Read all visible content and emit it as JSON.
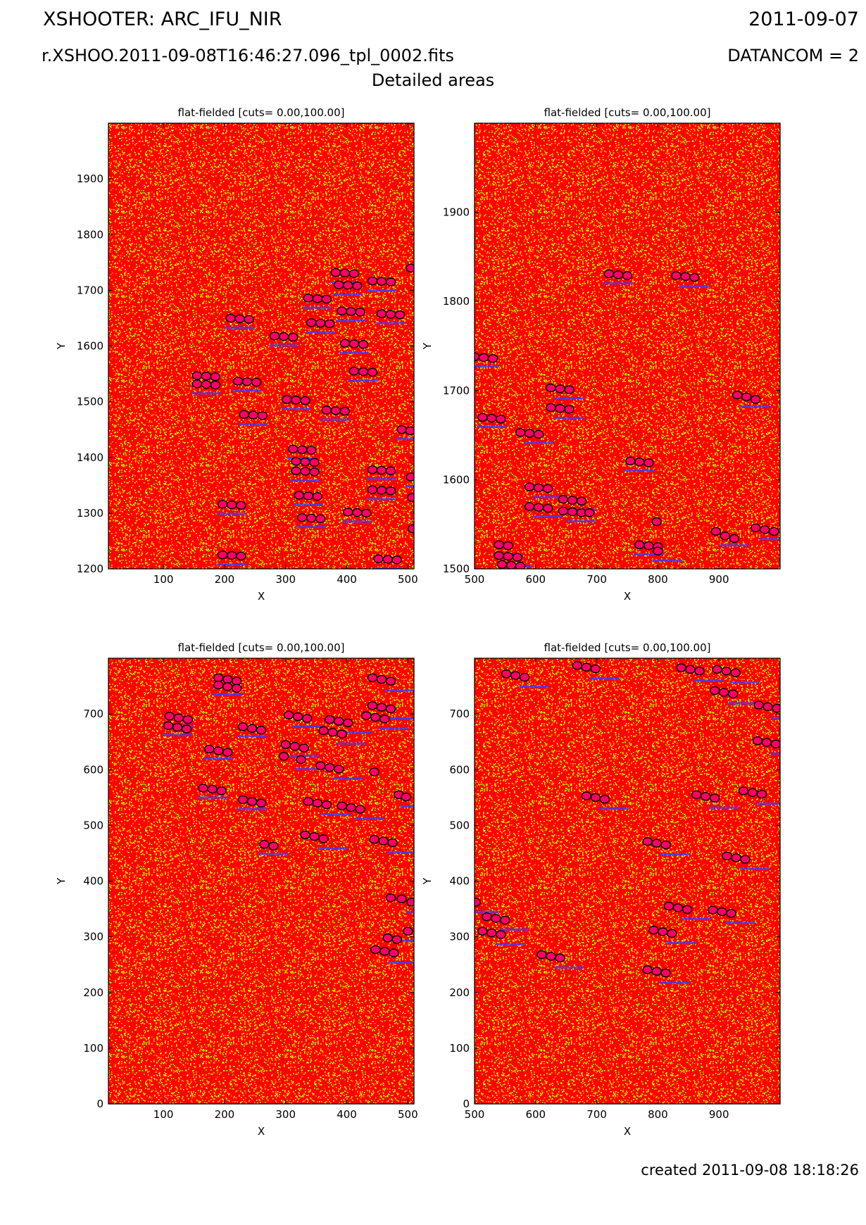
{
  "header": {
    "title": "XSHOOTER: ARC_IFU_NIR",
    "date": "2011-09-07",
    "filename": "r.XSHOO.2011-09-08T16:46:27.096_tpl_0002.fits",
    "datancom": "DATANCOM = 2",
    "subtitle": "Detailed areas"
  },
  "footer": {
    "created": "created 2011-09-08 18:18:26"
  },
  "colors": {
    "background_red": "#ff0000",
    "speckle_yellow": "#ffff00",
    "speckle_green": "#7fff00",
    "spot_magenta": "#ff0066",
    "line_blue": "#3c3cff",
    "cyan_halo": "#00e5ff",
    "circle_marker": "#000000"
  },
  "chart_data": [
    {
      "type": "heatmap",
      "title": "flat-fielded [cuts= 0.00,100.00]",
      "xlabel": "X",
      "ylabel": "Y",
      "xlim": [
        10,
        510
      ],
      "ylim": [
        1200,
        2000
      ],
      "xticks": [
        100,
        200,
        300,
        400,
        500
      ],
      "yticks": [
        1200,
        1300,
        1400,
        1500,
        1600,
        1700,
        1800,
        1900
      ],
      "cuts": [
        0.0,
        100.0
      ],
      "markers": [
        [
          197,
          1225
        ],
        [
          212,
          1224
        ],
        [
          227,
          1223
        ],
        [
          197,
          1316
        ],
        [
          212,
          1315
        ],
        [
          227,
          1314
        ],
        [
          155,
          1547
        ],
        [
          170,
          1546
        ],
        [
          185,
          1545
        ],
        [
          155,
          1532
        ],
        [
          170,
          1531
        ],
        [
          185,
          1530
        ],
        [
          210,
          1650
        ],
        [
          225,
          1649
        ],
        [
          240,
          1648
        ],
        [
          232,
          1477
        ],
        [
          247,
          1476
        ],
        [
          262,
          1475
        ],
        [
          222,
          1537
        ],
        [
          237,
          1536
        ],
        [
          252,
          1535
        ],
        [
          282,
          1618
        ],
        [
          297,
          1617
        ],
        [
          312,
          1616
        ],
        [
          302,
          1504
        ],
        [
          317,
          1503
        ],
        [
          332,
          1502
        ],
        [
          312,
          1415
        ],
        [
          327,
          1414
        ],
        [
          342,
          1413
        ],
        [
          317,
          1393
        ],
        [
          332,
          1392
        ],
        [
          347,
          1391
        ],
        [
          317,
          1376
        ],
        [
          332,
          1375
        ],
        [
          347,
          1374
        ],
        [
          322,
          1332
        ],
        [
          337,
          1331
        ],
        [
          352,
          1330
        ],
        [
          327,
          1292
        ],
        [
          342,
          1291
        ],
        [
          357,
          1290
        ],
        [
          337,
          1686
        ],
        [
          352,
          1685
        ],
        [
          367,
          1684
        ],
        [
          342,
          1642
        ],
        [
          357,
          1641
        ],
        [
          372,
          1640
        ],
        [
          367,
          1485
        ],
        [
          382,
          1484
        ],
        [
          397,
          1483
        ],
        [
          382,
          1732
        ],
        [
          397,
          1731
        ],
        [
          412,
          1730
        ],
        [
          387,
          1710
        ],
        [
          402,
          1709
        ],
        [
          417,
          1708
        ],
        [
          392,
          1663
        ],
        [
          407,
          1662
        ],
        [
          422,
          1661
        ],
        [
          397,
          1605
        ],
        [
          412,
          1604
        ],
        [
          427,
          1603
        ],
        [
          402,
          1302
        ],
        [
          417,
          1301
        ],
        [
          432,
          1300
        ],
        [
          412,
          1555
        ],
        [
          427,
          1554
        ],
        [
          442,
          1553
        ],
        [
          442,
          1378
        ],
        [
          457,
          1377
        ],
        [
          472,
          1376
        ],
        [
          442,
          1342
        ],
        [
          457,
          1341
        ],
        [
          472,
          1340
        ],
        [
          442,
          1717
        ],
        [
          457,
          1716
        ],
        [
          472,
          1715
        ],
        [
          457,
          1658
        ],
        [
          472,
          1657
        ],
        [
          487,
          1656
        ],
        [
          452,
          1218
        ],
        [
          467,
          1217
        ],
        [
          482,
          1216
        ],
        [
          490,
          1450
        ],
        [
          504,
          1448
        ],
        [
          505,
          1740
        ],
        [
          505,
          1365
        ],
        [
          507,
          1328
        ],
        [
          508,
          1272
        ]
      ]
    },
    {
      "type": "heatmap",
      "title": "flat-fielded [cuts= 0.00,100.00]",
      "xlabel": "X",
      "ylabel": "Y",
      "xlim": [
        500,
        1000
      ],
      "ylim": [
        1500,
        2000
      ],
      "xticks": [
        500,
        600,
        700,
        800,
        900
      ],
      "yticks": [
        1500,
        1600,
        1700,
        1800,
        1900
      ],
      "cuts": [
        0.0,
        100.0
      ],
      "markers": [
        [
          500,
          1738
        ],
        [
          515,
          1737
        ],
        [
          530,
          1736
        ],
        [
          513,
          1670
        ],
        [
          528,
          1669
        ],
        [
          543,
          1668
        ],
        [
          540,
          1527
        ],
        [
          555,
          1526
        ],
        [
          540,
          1515
        ],
        [
          555,
          1514
        ],
        [
          570,
          1513
        ],
        [
          545,
          1505
        ],
        [
          560,
          1504
        ],
        [
          575,
          1503
        ],
        [
          575,
          1653
        ],
        [
          590,
          1652
        ],
        [
          605,
          1651
        ],
        [
          590,
          1592
        ],
        [
          605,
          1591
        ],
        [
          620,
          1590
        ],
        [
          590,
          1570
        ],
        [
          605,
          1569
        ],
        [
          620,
          1568
        ],
        [
          625,
          1703
        ],
        [
          640,
          1702
        ],
        [
          655,
          1701
        ],
        [
          625,
          1681
        ],
        [
          640,
          1680
        ],
        [
          655,
          1679
        ],
        [
          645,
          1578
        ],
        [
          660,
          1577
        ],
        [
          675,
          1576
        ],
        [
          645,
          1565
        ],
        [
          660,
          1564
        ],
        [
          675,
          1563
        ],
        [
          688,
          1563
        ],
        [
          720,
          1831
        ],
        [
          735,
          1830
        ],
        [
          750,
          1829
        ],
        [
          755,
          1621
        ],
        [
          770,
          1620
        ],
        [
          785,
          1619
        ],
        [
          770,
          1527
        ],
        [
          785,
          1526
        ],
        [
          800,
          1525
        ],
        [
          800,
          1520
        ],
        [
          798,
          1553
        ],
        [
          830,
          1829
        ],
        [
          845,
          1828
        ],
        [
          860,
          1827
        ],
        [
          895,
          1542
        ],
        [
          910,
          1537
        ],
        [
          925,
          1534
        ],
        [
          930,
          1695
        ],
        [
          945,
          1693
        ],
        [
          960,
          1690
        ],
        [
          960,
          1546
        ],
        [
          975,
          1544
        ],
        [
          990,
          1542
        ]
      ]
    },
    {
      "type": "heatmap",
      "title": "flat-fielded [cuts= 0.00,100.00]",
      "xlabel": "X",
      "ylabel": "Y",
      "xlim": [
        10,
        510
      ],
      "ylim": [
        0,
        800
      ],
      "xticks": [
        100,
        200,
        300,
        400,
        500
      ],
      "yticks": [
        0,
        100,
        200,
        300,
        400,
        500,
        600,
        700
      ],
      "cuts": [
        0.0,
        100.0
      ],
      "markers": [
        [
          110,
          696
        ],
        [
          125,
          693
        ],
        [
          140,
          690
        ],
        [
          108,
          679
        ],
        [
          123,
          676
        ],
        [
          138,
          673
        ],
        [
          165,
          567
        ],
        [
          180,
          565
        ],
        [
          195,
          562
        ],
        [
          175,
          637
        ],
        [
          190,
          634
        ],
        [
          205,
          631
        ],
        [
          190,
          765
        ],
        [
          205,
          762
        ],
        [
          220,
          759
        ],
        [
          190,
          752
        ],
        [
          205,
          749
        ],
        [
          220,
          746
        ],
        [
          230,
          677
        ],
        [
          245,
          674
        ],
        [
          260,
          671
        ],
        [
          230,
          546
        ],
        [
          245,
          543
        ],
        [
          260,
          540
        ],
        [
          265,
          466
        ],
        [
          280,
          463
        ],
        [
          305,
          698
        ],
        [
          320,
          695
        ],
        [
          335,
          692
        ],
        [
          300,
          645
        ],
        [
          315,
          642
        ],
        [
          330,
          639
        ],
        [
          297,
          624
        ],
        [
          325,
          618
        ],
        [
          337,
          543
        ],
        [
          352,
          540
        ],
        [
          367,
          537
        ],
        [
          332,
          483
        ],
        [
          347,
          480
        ],
        [
          362,
          476
        ],
        [
          357,
          607
        ],
        [
          372,
          604
        ],
        [
          387,
          601
        ],
        [
          362,
          670
        ],
        [
          377,
          667
        ],
        [
          392,
          664
        ],
        [
          372,
          690
        ],
        [
          387,
          687
        ],
        [
          402,
          684
        ],
        [
          392,
          535
        ],
        [
          407,
          532
        ],
        [
          422,
          529
        ],
        [
          442,
          765
        ],
        [
          457,
          762
        ],
        [
          472,
          759
        ],
        [
          442,
          715
        ],
        [
          457,
          712
        ],
        [
          472,
          709
        ],
        [
          432,
          697
        ],
        [
          447,
          694
        ],
        [
          462,
          691
        ],
        [
          445,
          475
        ],
        [
          460,
          472
        ],
        [
          475,
          469
        ],
        [
          447,
          277
        ],
        [
          462,
          274
        ],
        [
          477,
          271
        ],
        [
          445,
          596
        ],
        [
          485,
          555
        ],
        [
          497,
          551
        ],
        [
          472,
          370
        ],
        [
          490,
          368
        ],
        [
          506,
          362
        ],
        [
          467,
          298
        ],
        [
          482,
          295
        ],
        [
          500,
          310
        ]
      ]
    },
    {
      "type": "heatmap",
      "title": "flat-fielded [cuts= 0.00,100.00]",
      "xlabel": "X",
      "ylabel": "Y",
      "xlim": [
        500,
        1000
      ],
      "ylim": [
        0,
        800
      ],
      "xticks": [
        500,
        600,
        700,
        800,
        900
      ],
      "yticks": [
        0,
        100,
        200,
        300,
        400,
        500,
        600,
        700
      ],
      "cuts": [
        0.0,
        100.0
      ],
      "markers": [
        [
          502,
          362
        ],
        [
          520,
          336
        ],
        [
          535,
          333
        ],
        [
          550,
          330
        ],
        [
          513,
          310
        ],
        [
          528,
          307
        ],
        [
          543,
          304
        ],
        [
          552,
          772
        ],
        [
          567,
          769
        ],
        [
          582,
          766
        ],
        [
          610,
          268
        ],
        [
          625,
          265
        ],
        [
          640,
          262
        ],
        [
          668,
          787
        ],
        [
          683,
          784
        ],
        [
          698,
          781
        ],
        [
          683,
          553
        ],
        [
          698,
          550
        ],
        [
          713,
          547
        ],
        [
          783,
          471
        ],
        [
          798,
          468
        ],
        [
          813,
          465
        ],
        [
          783,
          241
        ],
        [
          798,
          238
        ],
        [
          813,
          235
        ],
        [
          793,
          312
        ],
        [
          808,
          309
        ],
        [
          823,
          306
        ],
        [
          818,
          355
        ],
        [
          833,
          352
        ],
        [
          848,
          349
        ],
        [
          838,
          783
        ],
        [
          853,
          780
        ],
        [
          868,
          777
        ],
        [
          863,
          555
        ],
        [
          878,
          552
        ],
        [
          893,
          549
        ],
        [
          890,
          348
        ],
        [
          905,
          345
        ],
        [
          920,
          342
        ],
        [
          893,
          742
        ],
        [
          908,
          739
        ],
        [
          923,
          736
        ],
        [
          897,
          780
        ],
        [
          912,
          777
        ],
        [
          927,
          774
        ],
        [
          913,
          445
        ],
        [
          928,
          442
        ],
        [
          943,
          439
        ],
        [
          940,
          562
        ],
        [
          955,
          559
        ],
        [
          970,
          556
        ],
        [
          963,
          652
        ],
        [
          978,
          649
        ],
        [
          993,
          646
        ],
        [
          965,
          716
        ],
        [
          980,
          713
        ],
        [
          995,
          710
        ]
      ]
    }
  ]
}
